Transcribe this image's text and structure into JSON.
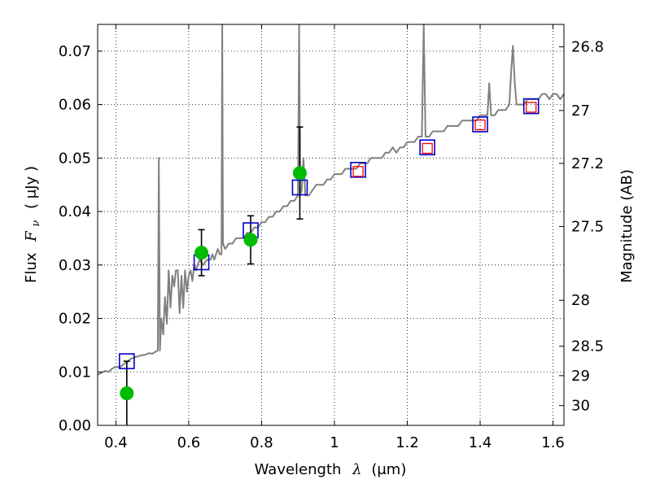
{
  "chart_data": {
    "type": "line",
    "xlabel": {
      "text": "Wavelength",
      "symbol": "λ",
      "unit": "(μm)"
    },
    "ylabel": {
      "text": "Flux",
      "symbol": "F",
      "subscript": "ν",
      "unit": "( μJy )"
    },
    "y2label": "Magnitude (AB)",
    "xlim": [
      0.35,
      1.63
    ],
    "ylim": [
      0.0,
      0.075
    ],
    "grid": true,
    "x_ticks": [
      0.4,
      0.6,
      0.8,
      1.0,
      1.2,
      1.4,
      1.6
    ],
    "x_tick_labels": [
      "0.4",
      "0.6",
      "0.8",
      "1",
      "1.2",
      "1.4",
      "1.6"
    ],
    "y_ticks": [
      0.0,
      0.01,
      0.02,
      0.03,
      0.04,
      0.05,
      0.06,
      0.07
    ],
    "y_tick_labels": [
      "0.00",
      "0.01",
      "0.02",
      "0.03",
      "0.04",
      "0.05",
      "0.06",
      "0.07"
    ],
    "y2_ticks": [
      {
        "label": "26.8",
        "flux": 0.0708
      },
      {
        "label": "27",
        "flux": 0.0589
      },
      {
        "label": "27.2",
        "flux": 0.049
      },
      {
        "label": "27.5",
        "flux": 0.0372
      },
      {
        "label": "28",
        "flux": 0.0234
      },
      {
        "label": "28.5",
        "flux": 0.0148
      },
      {
        "label": "29",
        "flux": 0.0093
      },
      {
        "label": "30",
        "flux": 0.0037
      }
    ],
    "series": [
      {
        "kind": "spectrum",
        "color": "#808080",
        "points": [
          [
            0.35,
            0.0095
          ],
          [
            0.36,
            0.0098
          ],
          [
            0.37,
            0.0102
          ],
          [
            0.38,
            0.01
          ],
          [
            0.39,
            0.0106
          ],
          [
            0.4,
            0.011
          ],
          [
            0.41,
            0.0108
          ],
          [
            0.42,
            0.0114
          ],
          [
            0.43,
            0.0118
          ],
          [
            0.44,
            0.0124
          ],
          [
            0.45,
            0.0127
          ],
          [
            0.46,
            0.0129
          ],
          [
            0.47,
            0.0131
          ],
          [
            0.48,
            0.0132
          ],
          [
            0.49,
            0.0135
          ],
          [
            0.5,
            0.0134
          ],
          [
            0.51,
            0.0138
          ],
          [
            0.515,
            0.014
          ],
          [
            0.518,
            0.05
          ],
          [
            0.521,
            0.014
          ],
          [
            0.525,
            0.02
          ],
          [
            0.53,
            0.017
          ],
          [
            0.535,
            0.024
          ],
          [
            0.54,
            0.019
          ],
          [
            0.545,
            0.029
          ],
          [
            0.55,
            0.022
          ],
          [
            0.555,
            0.028
          ],
          [
            0.56,
            0.026
          ],
          [
            0.565,
            0.029
          ],
          [
            0.57,
            0.029
          ],
          [
            0.575,
            0.021
          ],
          [
            0.58,
            0.028
          ],
          [
            0.585,
            0.022
          ],
          [
            0.59,
            0.029
          ],
          [
            0.595,
            0.025
          ],
          [
            0.6,
            0.028
          ],
          [
            0.605,
            0.029
          ],
          [
            0.61,
            0.027
          ],
          [
            0.615,
            0.03
          ],
          [
            0.62,
            0.029
          ],
          [
            0.625,
            0.03
          ],
          [
            0.63,
            0.031
          ],
          [
            0.64,
            0.03
          ],
          [
            0.65,
            0.031
          ],
          [
            0.66,
            0.031
          ],
          [
            0.665,
            0.032
          ],
          [
            0.67,
            0.031
          ],
          [
            0.675,
            0.032
          ],
          [
            0.68,
            0.033
          ],
          [
            0.685,
            0.032
          ],
          [
            0.69,
            0.032
          ],
          [
            0.692,
            0.075
          ],
          [
            0.694,
            0.034
          ],
          [
            0.7,
            0.033
          ],
          [
            0.71,
            0.034
          ],
          [
            0.72,
            0.034
          ],
          [
            0.73,
            0.035
          ],
          [
            0.74,
            0.035
          ],
          [
            0.75,
            0.035
          ],
          [
            0.76,
            0.036
          ],
          [
            0.77,
            0.036
          ],
          [
            0.78,
            0.037
          ],
          [
            0.79,
            0.037
          ],
          [
            0.8,
            0.038
          ],
          [
            0.81,
            0.038
          ],
          [
            0.82,
            0.039
          ],
          [
            0.83,
            0.039
          ],
          [
            0.84,
            0.04
          ],
          [
            0.85,
            0.04
          ],
          [
            0.86,
            0.041
          ],
          [
            0.87,
            0.041
          ],
          [
            0.88,
            0.042
          ],
          [
            0.89,
            0.042
          ],
          [
            0.9,
            0.043
          ],
          [
            0.903,
            0.075
          ],
          [
            0.906,
            0.043
          ],
          [
            0.91,
            0.044
          ],
          [
            0.915,
            0.05
          ],
          [
            0.92,
            0.043
          ],
          [
            0.93,
            0.043
          ],
          [
            0.94,
            0.044
          ],
          [
            0.95,
            0.045
          ],
          [
            0.96,
            0.045
          ],
          [
            0.97,
            0.045
          ],
          [
            0.98,
            0.046
          ],
          [
            0.99,
            0.046
          ],
          [
            1.0,
            0.047
          ],
          [
            1.01,
            0.047
          ],
          [
            1.02,
            0.047
          ],
          [
            1.03,
            0.048
          ],
          [
            1.04,
            0.048
          ],
          [
            1.05,
            0.048
          ],
          [
            1.06,
            0.048
          ],
          [
            1.07,
            0.049
          ],
          [
            1.08,
            0.049
          ],
          [
            1.09,
            0.049
          ],
          [
            1.1,
            0.05
          ],
          [
            1.11,
            0.05
          ],
          [
            1.12,
            0.05
          ],
          [
            1.13,
            0.05
          ],
          [
            1.14,
            0.051
          ],
          [
            1.15,
            0.051
          ],
          [
            1.16,
            0.052
          ],
          [
            1.17,
            0.051
          ],
          [
            1.18,
            0.052
          ],
          [
            1.19,
            0.052
          ],
          [
            1.2,
            0.053
          ],
          [
            1.21,
            0.053
          ],
          [
            1.22,
            0.053
          ],
          [
            1.23,
            0.054
          ],
          [
            1.24,
            0.054
          ],
          [
            1.245,
            0.075
          ],
          [
            1.25,
            0.054
          ],
          [
            1.26,
            0.054
          ],
          [
            1.27,
            0.055
          ],
          [
            1.28,
            0.055
          ],
          [
            1.29,
            0.055
          ],
          [
            1.3,
            0.055
          ],
          [
            1.31,
            0.056
          ],
          [
            1.32,
            0.056
          ],
          [
            1.33,
            0.056
          ],
          [
            1.34,
            0.056
          ],
          [
            1.35,
            0.057
          ],
          [
            1.36,
            0.057
          ],
          [
            1.37,
            0.057
          ],
          [
            1.38,
            0.057
          ],
          [
            1.39,
            0.057
          ],
          [
            1.4,
            0.058
          ],
          [
            1.41,
            0.058
          ],
          [
            1.42,
            0.058
          ],
          [
            1.425,
            0.064
          ],
          [
            1.43,
            0.058
          ],
          [
            1.44,
            0.058
          ],
          [
            1.45,
            0.059
          ],
          [
            1.46,
            0.059
          ],
          [
            1.47,
            0.059
          ],
          [
            1.48,
            0.06
          ],
          [
            1.485,
            0.066
          ],
          [
            1.49,
            0.071
          ],
          [
            1.495,
            0.064
          ],
          [
            1.5,
            0.06
          ],
          [
            1.51,
            0.06
          ],
          [
            1.52,
            0.06
          ],
          [
            1.53,
            0.061
          ],
          [
            1.54,
            0.061
          ],
          [
            1.55,
            0.061
          ],
          [
            1.56,
            0.061
          ],
          [
            1.57,
            0.062
          ],
          [
            1.58,
            0.062
          ],
          [
            1.59,
            0.061
          ],
          [
            1.6,
            0.062
          ],
          [
            1.61,
            0.062
          ],
          [
            1.62,
            0.061
          ],
          [
            1.63,
            0.062
          ]
        ]
      },
      {
        "kind": "model-photometry",
        "color": "#0000cc",
        "marker": "square",
        "points": [
          [
            0.43,
            0.012
          ],
          [
            0.635,
            0.0305
          ],
          [
            0.77,
            0.0365
          ],
          [
            0.905,
            0.0445
          ],
          [
            1.065,
            0.0478
          ],
          [
            1.255,
            0.052
          ],
          [
            1.4,
            0.0563
          ],
          [
            1.54,
            0.0597
          ]
        ]
      },
      {
        "kind": "observed-photometry",
        "color": "#ff0000",
        "marker": "square",
        "points": [
          [
            1.065,
            0.0475
          ],
          [
            1.255,
            0.0518
          ],
          [
            1.4,
            0.0562
          ],
          [
            1.54,
            0.0595
          ]
        ]
      },
      {
        "kind": "observed-photometry",
        "color": "#00bb00",
        "marker": "circle",
        "points": [
          [
            0.43,
            0.006,
            0.006
          ],
          [
            0.635,
            0.0323,
            0.0043
          ],
          [
            0.77,
            0.0347,
            0.0045
          ],
          [
            0.905,
            0.0472,
            0.0086
          ]
        ]
      }
    ]
  }
}
